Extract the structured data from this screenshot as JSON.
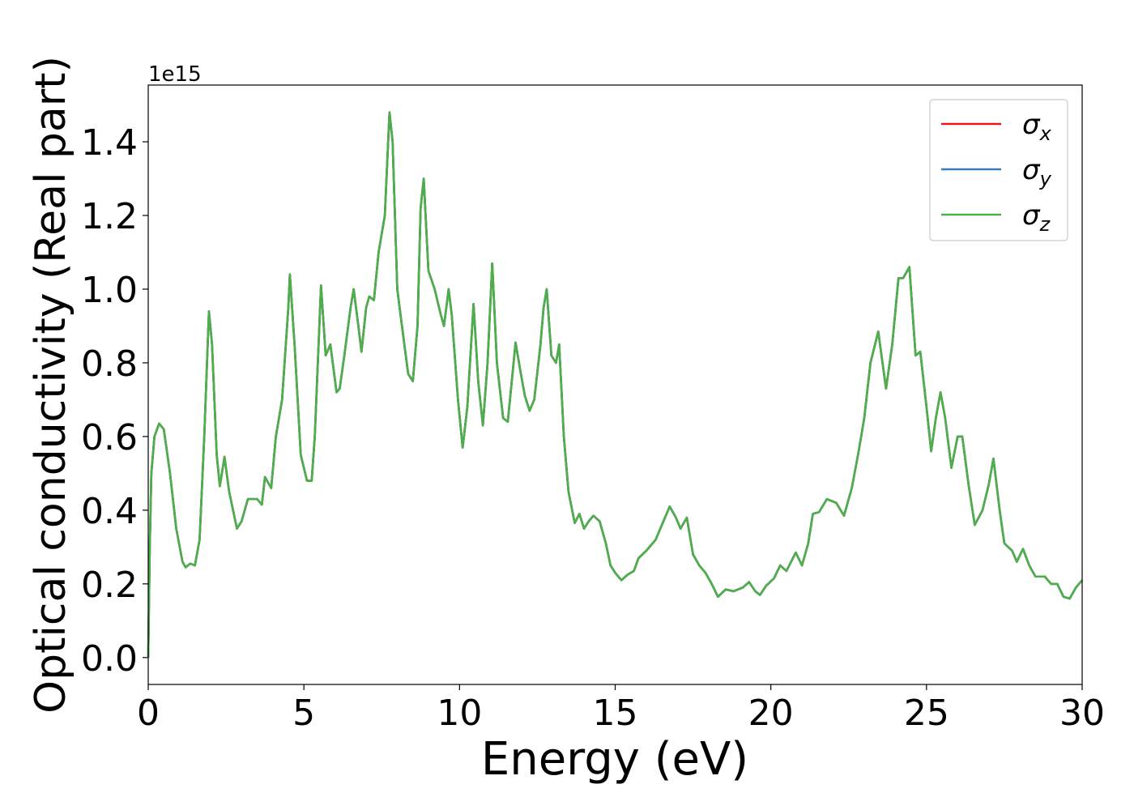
{
  "chart_data": {
    "type": "line",
    "xlabel": "Energy (eV)",
    "ylabel": "Optical conductivity (Real part)",
    "y_offset_label": "1e15",
    "x": [
      0,
      0.05,
      0.1,
      0.2,
      0.35,
      0.5,
      0.7,
      0.9,
      1.1,
      1.2,
      1.35,
      1.5,
      1.65,
      1.8,
      1.95,
      2.05,
      2.2,
      2.3,
      2.45,
      2.6,
      2.85,
      3.0,
      3.2,
      3.5,
      3.65,
      3.75,
      3.95,
      4.1,
      4.3,
      4.5,
      4.55,
      4.7,
      4.9,
      5.1,
      5.25,
      5.35,
      5.55,
      5.7,
      5.85,
      6.05,
      6.15,
      6.3,
      6.5,
      6.6,
      6.75,
      6.85,
      7.0,
      7.1,
      7.25,
      7.4,
      7.6,
      7.75,
      7.85,
      8.0,
      8.15,
      8.35,
      8.5,
      8.65,
      8.75,
      8.85,
      9.0,
      9.2,
      9.4,
      9.5,
      9.65,
      9.75,
      9.95,
      10.1,
      10.25,
      10.45,
      10.6,
      10.75,
      10.9,
      11.05,
      11.2,
      11.4,
      11.55,
      11.8,
      11.95,
      12.1,
      12.25,
      12.4,
      12.6,
      12.7,
      12.8,
      12.95,
      13.1,
      13.2,
      13.35,
      13.5,
      13.7,
      13.85,
      14.0,
      14.15,
      14.3,
      14.5,
      14.7,
      14.85,
      15.0,
      15.2,
      15.4,
      15.6,
      15.75,
      16.0,
      16.3,
      16.5,
      16.75,
      16.95,
      17.1,
      17.3,
      17.5,
      17.7,
      17.9,
      18.1,
      18.3,
      18.55,
      18.8,
      19.1,
      19.3,
      19.5,
      19.65,
      19.85,
      20.1,
      20.3,
      20.5,
      20.8,
      21.0,
      21.2,
      21.35,
      21.55,
      21.8,
      22.1,
      22.35,
      22.6,
      22.8,
      23.0,
      23.2,
      23.45,
      23.7,
      23.9,
      24.1,
      24.25,
      24.45,
      24.65,
      24.8,
      25.0,
      25.15,
      25.3,
      25.45,
      25.6,
      25.8,
      26.0,
      26.15,
      26.35,
      26.55,
      26.8,
      27.0,
      27.15,
      27.35,
      27.5,
      27.75,
      27.9,
      28.1,
      28.3,
      28.5,
      28.8,
      29.0,
      29.2,
      29.4,
      29.6,
      29.8,
      30.0
    ],
    "series": [
      {
        "name": "σx",
        "color": "#e41a1c",
        "values": [
          0,
          0.3,
          0.5,
          0.6,
          0.635,
          0.62,
          0.5,
          0.35,
          0.26,
          0.245,
          0.255,
          0.25,
          0.32,
          0.6,
          0.94,
          0.85,
          0.55,
          0.465,
          0.545,
          0.45,
          0.35,
          0.37,
          0.43,
          0.43,
          0.415,
          0.49,
          0.46,
          0.6,
          0.7,
          0.95,
          1.04,
          0.85,
          0.55,
          0.48,
          0.48,
          0.6,
          1.01,
          0.82,
          0.85,
          0.72,
          0.73,
          0.82,
          0.95,
          1.0,
          0.9,
          0.83,
          0.95,
          0.98,
          0.97,
          1.1,
          1.2,
          1.48,
          1.4,
          1.0,
          0.9,
          0.77,
          0.75,
          0.9,
          1.22,
          1.3,
          1.05,
          1.0,
          0.93,
          0.9,
          1.0,
          0.93,
          0.7,
          0.57,
          0.68,
          0.96,
          0.75,
          0.63,
          0.8,
          1.07,
          0.8,
          0.65,
          0.64,
          0.855,
          0.78,
          0.71,
          0.67,
          0.7,
          0.85,
          0.95,
          1.0,
          0.82,
          0.8,
          0.85,
          0.6,
          0.45,
          0.365,
          0.39,
          0.35,
          0.37,
          0.385,
          0.37,
          0.31,
          0.25,
          0.23,
          0.21,
          0.225,
          0.235,
          0.27,
          0.29,
          0.32,
          0.36,
          0.41,
          0.38,
          0.35,
          0.38,
          0.28,
          0.25,
          0.23,
          0.2,
          0.165,
          0.185,
          0.18,
          0.19,
          0.205,
          0.18,
          0.17,
          0.195,
          0.215,
          0.25,
          0.235,
          0.285,
          0.25,
          0.31,
          0.39,
          0.395,
          0.43,
          0.42,
          0.385,
          0.46,
          0.55,
          0.65,
          0.8,
          0.885,
          0.73,
          0.85,
          1.03,
          1.03,
          1.06,
          0.82,
          0.83,
          0.68,
          0.56,
          0.65,
          0.72,
          0.65,
          0.515,
          0.6,
          0.6,
          0.47,
          0.36,
          0.4,
          0.47,
          0.54,
          0.4,
          0.31,
          0.29,
          0.26,
          0.295,
          0.25,
          0.22,
          0.22,
          0.2,
          0.2,
          0.165,
          0.16,
          0.19,
          0.21
        ]
      },
      {
        "name": "σy",
        "color": "#377eb8",
        "values": [
          0,
          0.3,
          0.5,
          0.6,
          0.635,
          0.62,
          0.5,
          0.35,
          0.26,
          0.245,
          0.255,
          0.25,
          0.32,
          0.6,
          0.94,
          0.85,
          0.55,
          0.465,
          0.545,
          0.45,
          0.35,
          0.37,
          0.43,
          0.43,
          0.415,
          0.49,
          0.46,
          0.6,
          0.7,
          0.95,
          1.04,
          0.85,
          0.55,
          0.48,
          0.48,
          0.6,
          1.01,
          0.82,
          0.85,
          0.72,
          0.73,
          0.82,
          0.95,
          1.0,
          0.9,
          0.83,
          0.95,
          0.98,
          0.97,
          1.1,
          1.2,
          1.48,
          1.4,
          1.0,
          0.9,
          0.77,
          0.75,
          0.9,
          1.22,
          1.3,
          1.05,
          1.0,
          0.93,
          0.9,
          1.0,
          0.93,
          0.7,
          0.57,
          0.68,
          0.96,
          0.75,
          0.63,
          0.8,
          1.07,
          0.8,
          0.65,
          0.64,
          0.855,
          0.78,
          0.71,
          0.67,
          0.7,
          0.85,
          0.95,
          1.0,
          0.82,
          0.8,
          0.85,
          0.6,
          0.45,
          0.365,
          0.39,
          0.35,
          0.37,
          0.385,
          0.37,
          0.31,
          0.25,
          0.23,
          0.21,
          0.225,
          0.235,
          0.27,
          0.29,
          0.32,
          0.36,
          0.41,
          0.38,
          0.35,
          0.38,
          0.28,
          0.25,
          0.23,
          0.2,
          0.165,
          0.185,
          0.18,
          0.19,
          0.205,
          0.18,
          0.17,
          0.195,
          0.215,
          0.25,
          0.235,
          0.285,
          0.25,
          0.31,
          0.39,
          0.395,
          0.43,
          0.42,
          0.385,
          0.46,
          0.55,
          0.65,
          0.8,
          0.885,
          0.73,
          0.85,
          1.03,
          1.03,
          1.06,
          0.82,
          0.83,
          0.68,
          0.56,
          0.65,
          0.72,
          0.65,
          0.515,
          0.6,
          0.6,
          0.47,
          0.36,
          0.4,
          0.47,
          0.54,
          0.4,
          0.31,
          0.29,
          0.26,
          0.295,
          0.25,
          0.22,
          0.22,
          0.2,
          0.2,
          0.165,
          0.16,
          0.19,
          0.21
        ]
      },
      {
        "name": "σz",
        "color": "#4daf4a",
        "values": [
          0,
          0.3,
          0.5,
          0.6,
          0.635,
          0.62,
          0.5,
          0.35,
          0.26,
          0.245,
          0.255,
          0.25,
          0.32,
          0.6,
          0.94,
          0.85,
          0.55,
          0.465,
          0.545,
          0.45,
          0.35,
          0.37,
          0.43,
          0.43,
          0.415,
          0.49,
          0.46,
          0.6,
          0.7,
          0.95,
          1.04,
          0.85,
          0.55,
          0.48,
          0.48,
          0.6,
          1.01,
          0.82,
          0.85,
          0.72,
          0.73,
          0.82,
          0.95,
          1.0,
          0.9,
          0.83,
          0.95,
          0.98,
          0.97,
          1.1,
          1.2,
          1.48,
          1.4,
          1.0,
          0.9,
          0.77,
          0.75,
          0.9,
          1.22,
          1.3,
          1.05,
          1.0,
          0.93,
          0.9,
          1.0,
          0.93,
          0.7,
          0.57,
          0.68,
          0.96,
          0.75,
          0.63,
          0.8,
          1.07,
          0.8,
          0.65,
          0.64,
          0.855,
          0.78,
          0.71,
          0.67,
          0.7,
          0.85,
          0.95,
          1.0,
          0.82,
          0.8,
          0.85,
          0.6,
          0.45,
          0.365,
          0.39,
          0.35,
          0.37,
          0.385,
          0.37,
          0.31,
          0.25,
          0.23,
          0.21,
          0.225,
          0.235,
          0.27,
          0.29,
          0.32,
          0.36,
          0.41,
          0.38,
          0.35,
          0.38,
          0.28,
          0.25,
          0.23,
          0.2,
          0.165,
          0.185,
          0.18,
          0.19,
          0.205,
          0.18,
          0.17,
          0.195,
          0.215,
          0.25,
          0.235,
          0.285,
          0.25,
          0.31,
          0.39,
          0.395,
          0.43,
          0.42,
          0.385,
          0.46,
          0.55,
          0.65,
          0.8,
          0.885,
          0.73,
          0.85,
          1.03,
          1.03,
          1.06,
          0.82,
          0.83,
          0.68,
          0.56,
          0.65,
          0.72,
          0.65,
          0.515,
          0.6,
          0.6,
          0.47,
          0.36,
          0.4,
          0.47,
          0.54,
          0.4,
          0.31,
          0.29,
          0.26,
          0.295,
          0.25,
          0.22,
          0.22,
          0.2,
          0.2,
          0.165,
          0.16,
          0.19,
          0.21
        ]
      }
    ],
    "xlim": [
      0,
      30
    ],
    "xticks": [
      0,
      5,
      10,
      15,
      20,
      25,
      30
    ],
    "ylim": [
      -0.073,
      1.554
    ],
    "yticks": [
      {
        "value": 0,
        "label": "0.0"
      },
      0.2,
      0.4,
      0.6,
      0.8,
      {
        "value": 1,
        "label": "1.0"
      },
      1.2,
      1.4
    ],
    "grid": false,
    "legend": "upper right"
  }
}
